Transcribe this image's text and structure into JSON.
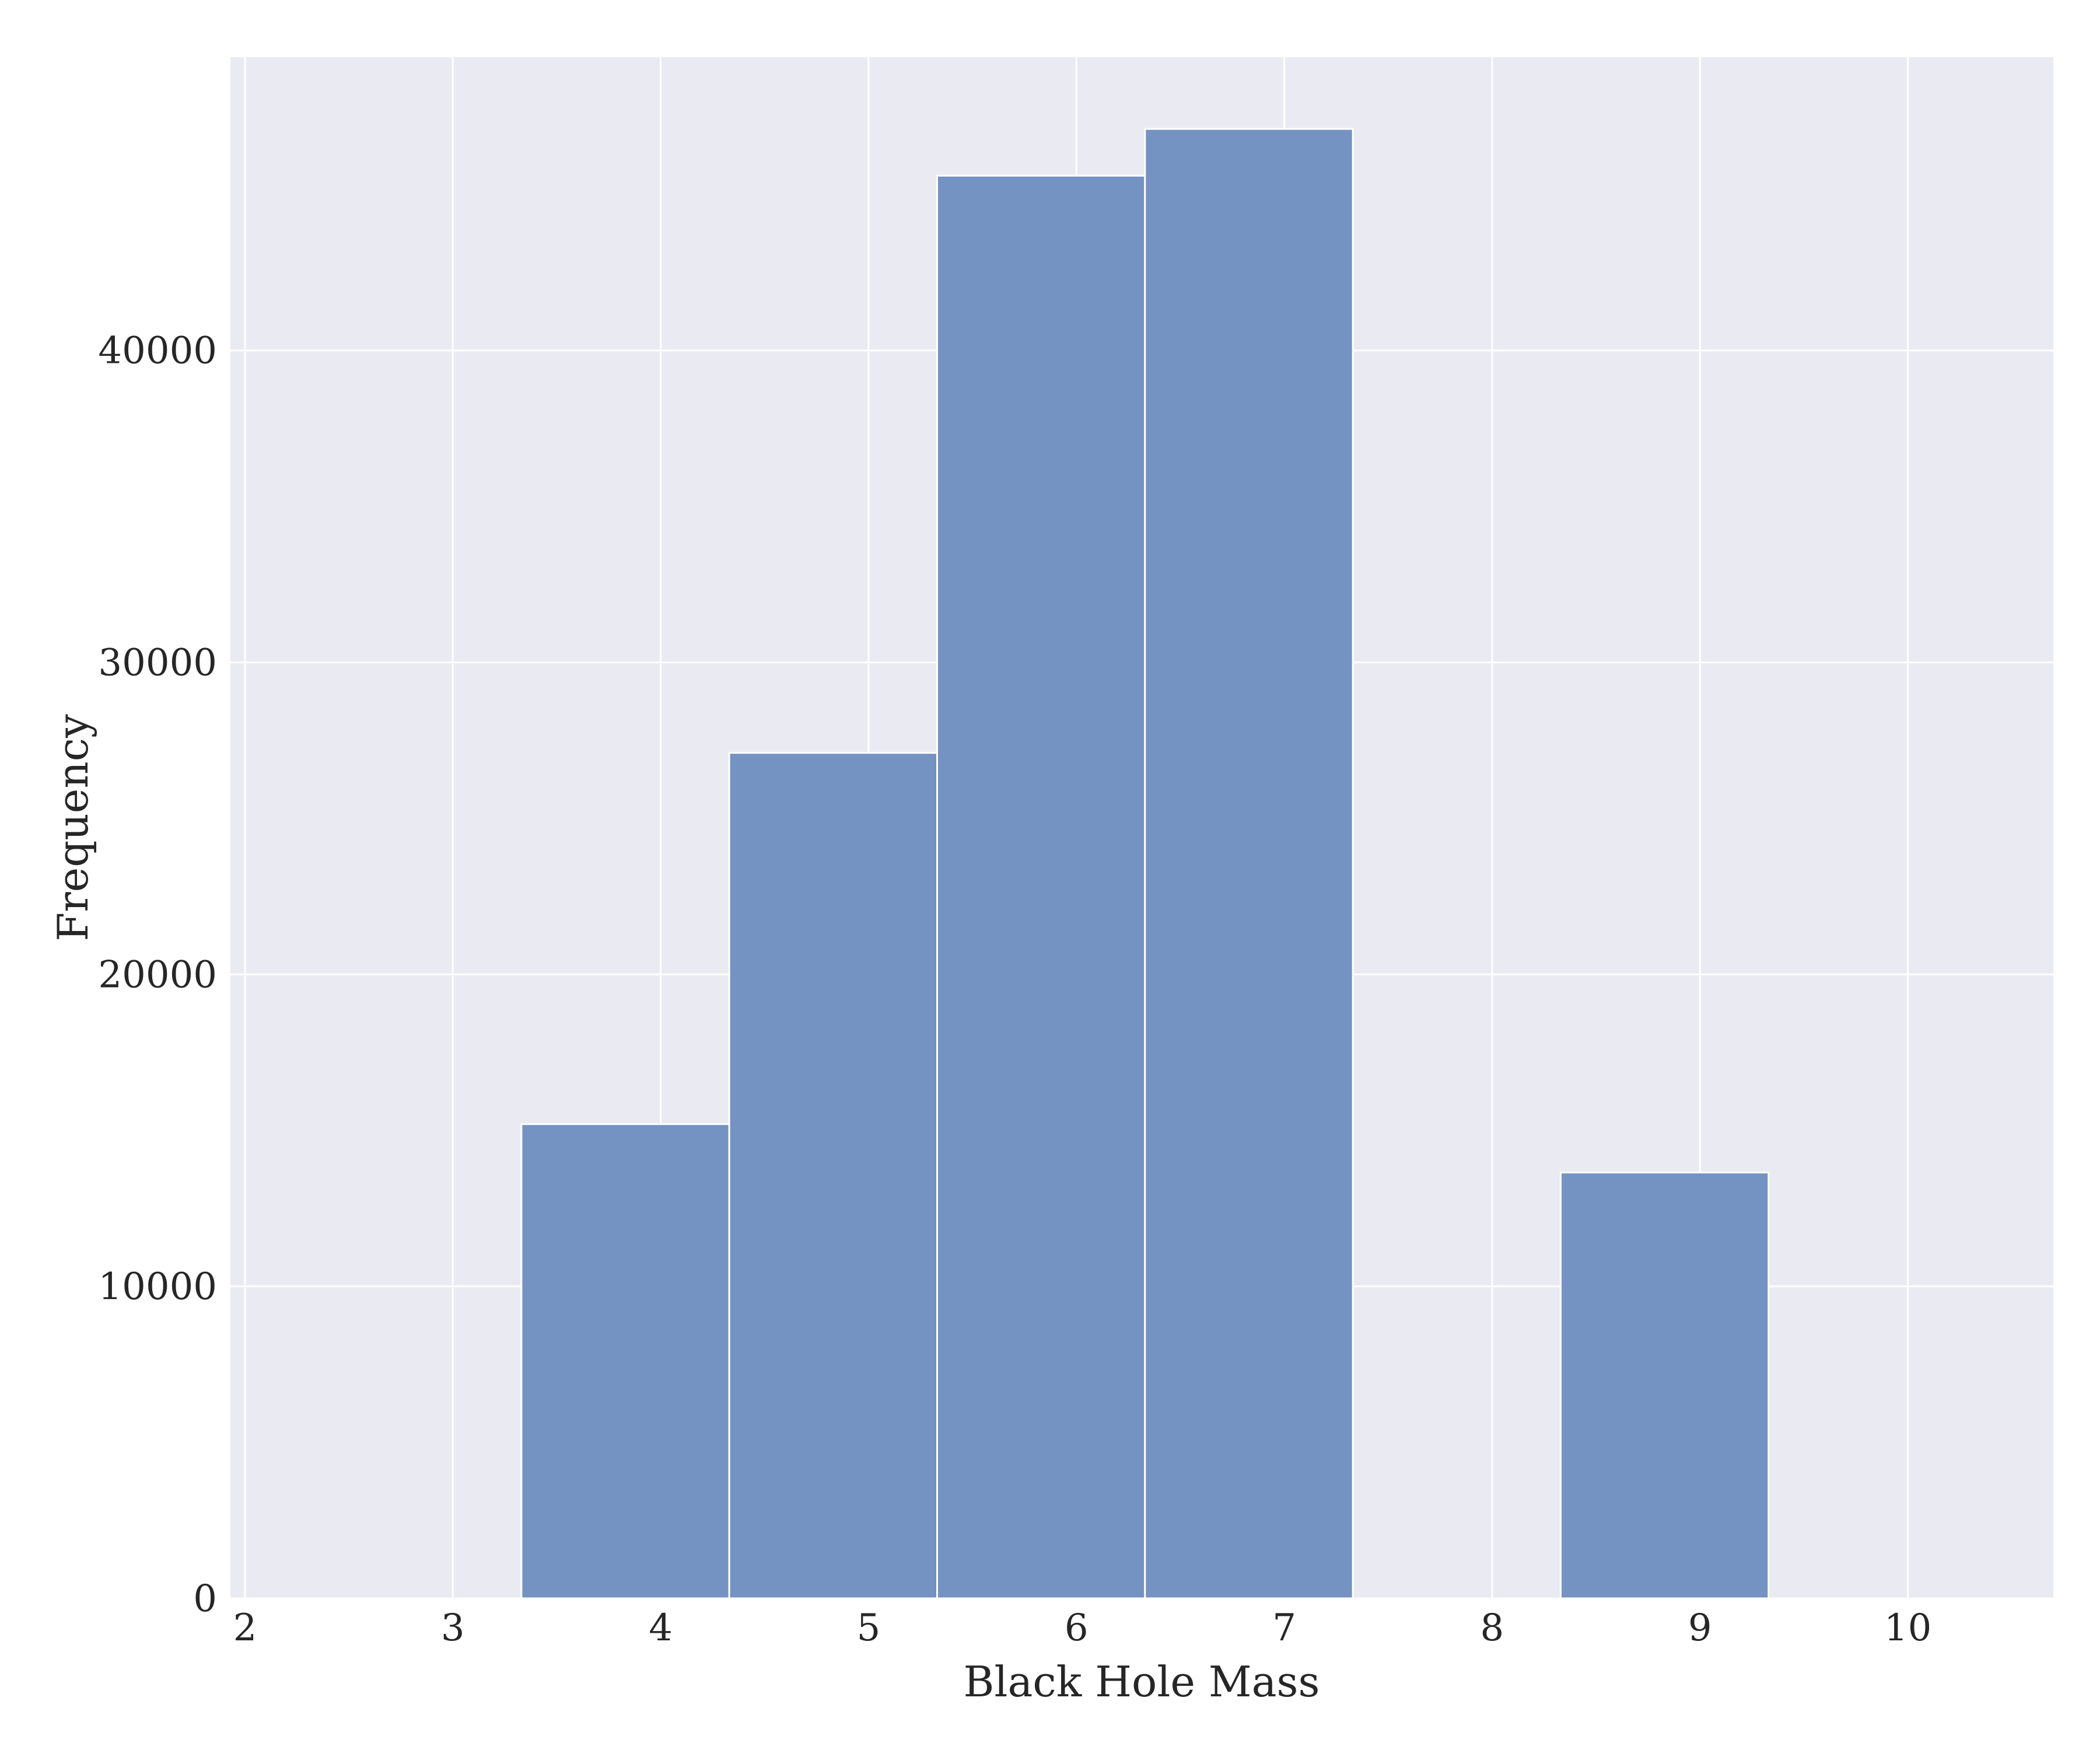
{
  "chart_data": {
    "type": "bar",
    "bins": [
      {
        "x0": 3.33,
        "x1": 4.33,
        "value": 15200
      },
      {
        "x0": 4.33,
        "x1": 5.33,
        "value": 27100
      },
      {
        "x0": 5.33,
        "x1": 6.33,
        "value": 45600
      },
      {
        "x0": 6.33,
        "x1": 7.33,
        "value": 47100
      },
      {
        "x0": 8.33,
        "x1": 9.33,
        "value": 13650
      }
    ],
    "xlabel": "Black Hole Mass",
    "ylabel": "Frequency",
    "xlim": [
      1.93,
      10.7
    ],
    "ylim": [
      0,
      49400
    ],
    "x_ticks": [
      2,
      3,
      4,
      5,
      6,
      7,
      8,
      9,
      10
    ],
    "y_ticks": [
      0,
      10000,
      20000,
      30000,
      40000
    ],
    "grid": true,
    "colors": {
      "background": "#eaeaf2",
      "bar": "#7492c2",
      "grid": "#ffffff"
    }
  }
}
